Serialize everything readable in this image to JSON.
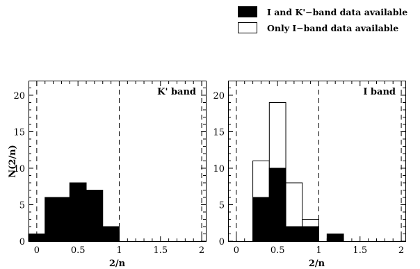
{
  "legend": {
    "filled_label": "I and K'−band data available",
    "open_label": "Only I−band data available"
  },
  "chart_data": [
    {
      "type": "histogram",
      "panel_label": "K' band",
      "xlabel": "2/n",
      "ylabel": "N(2/n)",
      "xlim": [
        -0.1,
        2.05
      ],
      "ylim": [
        0,
        22
      ],
      "x_ticks": [
        "0",
        "0.5",
        "1",
        "1.5",
        "2"
      ],
      "y_ticks": [
        "0",
        "5",
        "10",
        "15",
        "20"
      ],
      "bin_width": 0.2,
      "reference_lines_x": [
        0,
        1,
        2
      ],
      "series": [
        {
          "style": "filled",
          "bins": [
            {
              "x0": -0.1,
              "count": 1
            },
            {
              "x0": 0.1,
              "count": 6
            },
            {
              "x0": 0.3,
              "count": 6
            },
            {
              "x0": 0.4,
              "count": 8
            },
            {
              "x0": 0.6,
              "count": 7
            },
            {
              "x0": 0.8,
              "count": 2
            }
          ]
        }
      ]
    },
    {
      "type": "histogram",
      "panel_label": "I band",
      "xlabel": "2/n",
      "ylabel": "",
      "xlim": [
        -0.1,
        2.05
      ],
      "ylim": [
        0,
        22
      ],
      "x_ticks": [
        "0",
        "0.5",
        "1",
        "1.5",
        "2"
      ],
      "y_ticks": [
        "0",
        "5",
        "10",
        "15",
        "20"
      ],
      "bin_width": 0.2,
      "reference_lines_x": [
        0,
        1,
        2
      ],
      "series": [
        {
          "style": "open",
          "bins": [
            {
              "x0": 0.2,
              "count": 11
            },
            {
              "x0": 0.4,
              "count": 19
            },
            {
              "x0": 0.6,
              "count": 8
            },
            {
              "x0": 0.8,
              "count": 3
            }
          ]
        },
        {
          "style": "filled",
          "bins": [
            {
              "x0": 0.2,
              "count": 6
            },
            {
              "x0": 0.4,
              "count": 10
            },
            {
              "x0": 0.6,
              "count": 2
            },
            {
              "x0": 0.8,
              "count": 2
            },
            {
              "x0": 1.1,
              "count": 1
            }
          ]
        }
      ]
    }
  ]
}
